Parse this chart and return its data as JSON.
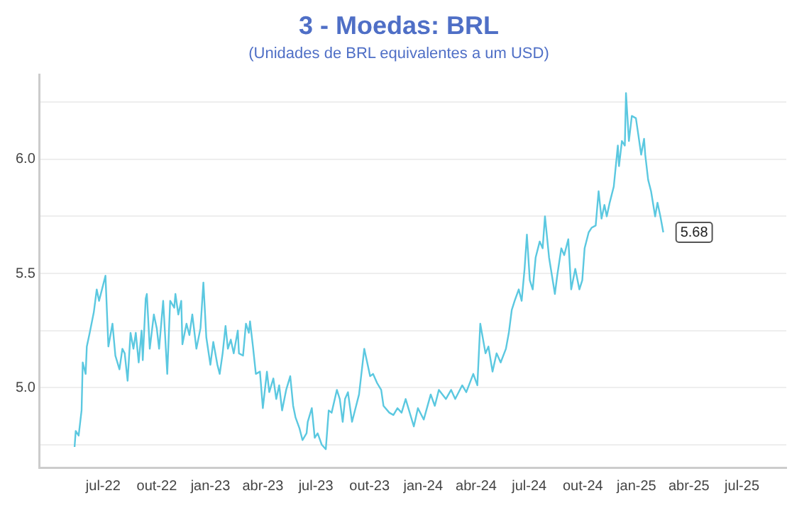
{
  "chart_data": {
    "type": "line",
    "title": "3 - Moedas: BRL",
    "subtitle": "(Unidades de BRL equivalentes a um USD)",
    "x": [
      "2022-05-13",
      "2022-05-15",
      "2022-05-20",
      "2022-05-25",
      "2022-05-27",
      "2022-06-01",
      "2022-06-03",
      "2022-06-08",
      "2022-06-15",
      "2022-06-20",
      "2022-06-24",
      "2022-06-29",
      "2022-07-05",
      "2022-07-10",
      "2022-07-17",
      "2022-07-22",
      "2022-07-29",
      "2022-08-03",
      "2022-08-07",
      "2022-08-12",
      "2022-08-17",
      "2022-08-22",
      "2022-08-26",
      "2022-08-31",
      "2022-09-05",
      "2022-09-07",
      "2022-09-12",
      "2022-09-14",
      "2022-09-19",
      "2022-09-26",
      "2022-10-01",
      "2022-10-05",
      "2022-10-12",
      "2022-10-19",
      "2022-10-24",
      "2022-10-31",
      "2022-11-02",
      "2022-11-07",
      "2022-11-12",
      "2022-11-14",
      "2022-11-21",
      "2022-11-26",
      "2022-12-01",
      "2022-12-08",
      "2022-12-15",
      "2022-12-20",
      "2022-12-25",
      "2023-01-01",
      "2023-01-06",
      "2023-01-13",
      "2023-01-17",
      "2023-01-22",
      "2023-01-27",
      "2023-01-31",
      "2023-02-05",
      "2023-02-10",
      "2023-02-17",
      "2023-02-19",
      "2023-02-26",
      "2023-03-03",
      "2023-03-08",
      "2023-03-10",
      "2023-03-15",
      "2023-03-20",
      "2023-03-27",
      "2023-04-01",
      "2023-04-08",
      "2023-04-12",
      "2023-04-19",
      "2023-04-24",
      "2023-04-29",
      "2023-05-04",
      "2023-05-11",
      "2023-05-18",
      "2023-05-23",
      "2023-05-27",
      "2023-06-03",
      "2023-06-08",
      "2023-06-15",
      "2023-06-17",
      "2023-06-24",
      "2023-06-29",
      "2023-07-04",
      "2023-07-11",
      "2023-07-18",
      "2023-07-23",
      "2023-07-28",
      "2023-08-06",
      "2023-08-11",
      "2023-08-16",
      "2023-08-20",
      "2023-08-25",
      "2023-09-01",
      "2023-09-08",
      "2023-09-13",
      "2023-09-22",
      "2023-10-02",
      "2023-10-07",
      "2023-10-14",
      "2023-10-21",
      "2023-10-25",
      "2023-11-04",
      "2023-11-11",
      "2023-11-18",
      "2023-11-25",
      "2023-12-02",
      "2023-12-16",
      "2023-12-23",
      "2024-01-02",
      "2024-01-14",
      "2024-01-21",
      "2024-01-28",
      "2024-02-09",
      "2024-02-18",
      "2024-02-25",
      "2024-03-08",
      "2024-03-15",
      "2024-03-27",
      "2024-04-03",
      "2024-04-08",
      "2024-04-17",
      "2024-04-22",
      "2024-04-29",
      "2024-05-06",
      "2024-05-13",
      "2024-05-22",
      "2024-05-27",
      "2024-06-01",
      "2024-06-06",
      "2024-06-13",
      "2024-06-18",
      "2024-06-23",
      "2024-06-27",
      "2024-07-02",
      "2024-07-07",
      "2024-07-12",
      "2024-07-19",
      "2024-07-24",
      "2024-07-28",
      "2024-08-04",
      "2024-08-09",
      "2024-08-14",
      "2024-08-18",
      "2024-08-25",
      "2024-08-30",
      "2024-09-06",
      "2024-09-11",
      "2024-09-18",
      "2024-09-25",
      "2024-09-30",
      "2024-10-04",
      "2024-10-11",
      "2024-10-16",
      "2024-10-23",
      "2024-10-28",
      "2024-11-02",
      "2024-11-07",
      "2024-11-11",
      "2024-11-16",
      "2024-11-23",
      "2024-11-30",
      "2024-12-02",
      "2024-12-07",
      "2024-12-12",
      "2024-12-14",
      "2024-12-19",
      "2024-12-24",
      "2024-12-31",
      "2025-01-04",
      "2025-01-09",
      "2025-01-14",
      "2025-01-16",
      "2025-01-21",
      "2025-01-26",
      "2025-02-02",
      "2025-02-06",
      "2025-02-11",
      "2025-02-16"
    ],
    "series": [
      {
        "color": "#5bc8e0",
        "values": [
          4.74,
          4.81,
          4.79,
          4.9,
          5.11,
          5.06,
          5.18,
          5.24,
          5.33,
          5.43,
          5.38,
          5.43,
          5.49,
          5.18,
          5.28,
          5.14,
          5.08,
          5.17,
          5.15,
          5.03,
          5.24,
          5.17,
          5.24,
          5.11,
          5.25,
          5.12,
          5.39,
          5.41,
          5.17,
          5.32,
          5.26,
          5.17,
          5.38,
          5.06,
          5.38,
          5.35,
          5.41,
          5.32,
          5.38,
          5.19,
          5.28,
          5.23,
          5.32,
          5.17,
          5.26,
          5.46,
          5.22,
          5.1,
          5.2,
          5.1,
          5.06,
          5.15,
          5.27,
          5.17,
          5.21,
          5.15,
          5.25,
          5.15,
          5.14,
          5.28,
          5.24,
          5.29,
          5.18,
          5.06,
          5.07,
          4.91,
          5.07,
          4.98,
          5.04,
          4.95,
          5.01,
          4.9,
          4.99,
          5.05,
          4.92,
          4.87,
          4.82,
          4.77,
          4.8,
          4.85,
          4.91,
          4.78,
          4.8,
          4.75,
          4.73,
          4.9,
          4.89,
          4.99,
          4.95,
          4.85,
          4.95,
          4.98,
          4.85,
          4.92,
          4.97,
          5.17,
          5.05,
          5.06,
          5.02,
          4.99,
          4.92,
          4.89,
          4.88,
          4.91,
          4.89,
          4.95,
          4.83,
          4.91,
          4.86,
          4.97,
          4.92,
          4.99,
          4.95,
          4.99,
          4.95,
          5.01,
          4.98,
          5.06,
          5.01,
          5.28,
          5.15,
          5.18,
          5.07,
          5.15,
          5.11,
          5.17,
          5.24,
          5.34,
          5.38,
          5.43,
          5.38,
          5.52,
          5.67,
          5.47,
          5.43,
          5.57,
          5.64,
          5.61,
          5.75,
          5.57,
          5.49,
          5.41,
          5.49,
          5.61,
          5.58,
          5.65,
          5.43,
          5.52,
          5.43,
          5.47,
          5.61,
          5.68,
          5.7,
          5.71,
          5.86,
          5.74,
          5.8,
          5.75,
          5.81,
          5.88,
          6.06,
          5.97,
          6.08,
          6.06,
          6.29,
          6.08,
          6.19,
          6.18,
          6.11,
          6.02,
          6.09,
          6.02,
          5.91,
          5.86,
          5.75,
          5.81,
          5.75,
          5.68
        ]
      }
    ],
    "xlim": [
      "2022-03-14",
      "2025-09-15"
    ],
    "xticks": [
      {
        "value": "2022-07-01",
        "label": "jul-22"
      },
      {
        "value": "2022-10-01",
        "label": "out-22"
      },
      {
        "value": "2023-01-01",
        "label": "jan-23"
      },
      {
        "value": "2023-04-01",
        "label": "abr-23"
      },
      {
        "value": "2023-07-01",
        "label": "jul-23"
      },
      {
        "value": "2023-10-01",
        "label": "out-23"
      },
      {
        "value": "2024-01-01",
        "label": "jan-24"
      },
      {
        "value": "2024-04-01",
        "label": "abr-24"
      },
      {
        "value": "2024-07-01",
        "label": "jul-24"
      },
      {
        "value": "2024-10-01",
        "label": "out-24"
      },
      {
        "value": "2025-01-01",
        "label": "jan-25"
      },
      {
        "value": "2025-04-01",
        "label": "abr-25"
      },
      {
        "value": "2025-07-01",
        "label": "jul-25"
      }
    ],
    "ylim": [
      4.65,
      6.37
    ],
    "yticks": [
      {
        "value": 4.75,
        "label": null
      },
      {
        "value": 5.0,
        "label": "5.0"
      },
      {
        "value": 5.25,
        "label": null
      },
      {
        "value": 5.5,
        "label": "5.5"
      },
      {
        "value": 5.75,
        "label": null
      },
      {
        "value": 6.0,
        "label": "6.0"
      },
      {
        "value": 6.25,
        "label": null
      }
    ],
    "annotations": [
      {
        "text": "5.68",
        "x": "2025-02-16",
        "y": 5.68
      }
    ],
    "grid": "y",
    "legend": false,
    "marker": "none",
    "line_style": "solid"
  }
}
